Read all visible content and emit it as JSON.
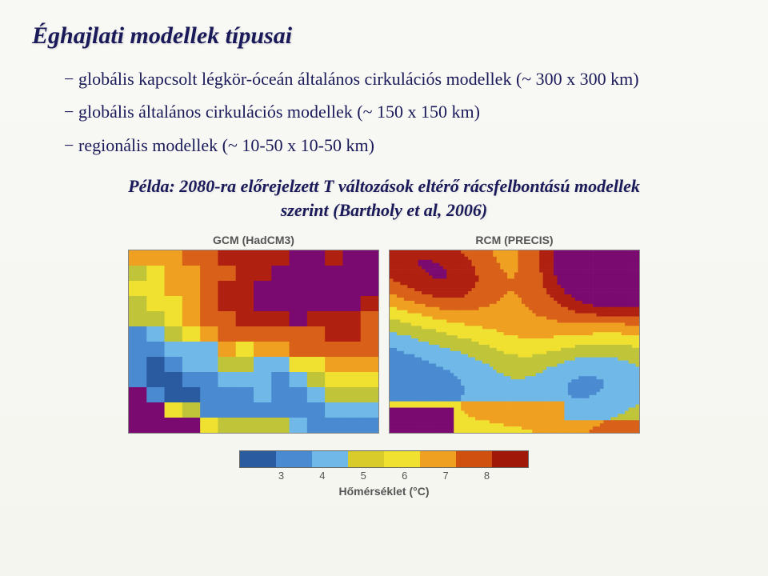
{
  "title": "Éghajlati modellek típusai",
  "bullets": [
    "globális kapcsolt légkör-óceán általános cirkulációs modellek  (~ 300 x 300 km)",
    "globális általános cirkulációs modellek  (~ 150 x 150 km)",
    "regionális modellek (~ 10-50 x 10-50 km)"
  ],
  "example_line1": "Példa: 2080-ra előrejelzett T változások eltérő rácsfelbontású modellek",
  "example_line2": "szerint (Bartholy et al, 2006)",
  "map_left_title": "GCM (HadCM3)",
  "map_right_title": "RCM (PRECIS)",
  "legend_label": "Hőmérséklet (°C)",
  "legend": {
    "colors": [
      "#2a5aa0",
      "#4a8ad0",
      "#6fb8e8",
      "#d8cb2a",
      "#f0e030",
      "#f0a020",
      "#d05010",
      "#a01808"
    ],
    "ticks": [
      "3",
      "4",
      "5",
      "6",
      "7",
      "8"
    ]
  },
  "gcm": {
    "cols": 14,
    "rows": 12,
    "palette": {
      "0": "#1a3a78",
      "1": "#2a5aa0",
      "2": "#4a8ad0",
      "3": "#6fb8e8",
      "4": "#c0c438",
      "5": "#f0e030",
      "6": "#f0a020",
      "7": "#d86018",
      "8": "#b02010",
      "9": "#7a0a70"
    },
    "grid": [
      [
        6,
        6,
        6,
        7,
        7,
        8,
        8,
        8,
        8,
        9,
        9,
        8,
        9,
        9
      ],
      [
        4,
        5,
        6,
        6,
        7,
        7,
        8,
        8,
        9,
        9,
        9,
        9,
        9,
        9
      ],
      [
        5,
        5,
        6,
        6,
        7,
        8,
        8,
        9,
        9,
        9,
        9,
        9,
        9,
        9
      ],
      [
        4,
        5,
        5,
        6,
        7,
        8,
        8,
        9,
        9,
        9,
        9,
        9,
        9,
        8
      ],
      [
        4,
        4,
        5,
        6,
        7,
        7,
        8,
        8,
        8,
        9,
        8,
        8,
        8,
        7
      ],
      [
        2,
        3,
        4,
        5,
        6,
        7,
        7,
        7,
        7,
        7,
        7,
        8,
        8,
        7
      ],
      [
        2,
        2,
        3,
        3,
        3,
        6,
        5,
        6,
        6,
        7,
        7,
        7,
        7,
        7
      ],
      [
        2,
        1,
        2,
        3,
        3,
        4,
        4,
        3,
        3,
        5,
        5,
        6,
        6,
        6
      ],
      [
        2,
        1,
        1,
        2,
        2,
        3,
        3,
        3,
        2,
        3,
        4,
        5,
        5,
        5
      ],
      [
        9,
        2,
        1,
        1,
        2,
        2,
        2,
        3,
        2,
        2,
        3,
        4,
        4,
        4
      ],
      [
        9,
        9,
        5,
        4,
        2,
        2,
        2,
        2,
        2,
        2,
        2,
        3,
        3,
        3
      ],
      [
        9,
        9,
        9,
        9,
        5,
        4,
        4,
        4,
        4,
        3,
        2,
        2,
        2,
        2
      ]
    ]
  },
  "rcm": {
    "palette": [
      "#1a3a78",
      "#2a5aa0",
      "#4a8ad0",
      "#6fb8e8",
      "#c0c438",
      "#f0e030",
      "#f0a020",
      "#d86018",
      "#b02010",
      "#7a0a70"
    ]
  }
}
